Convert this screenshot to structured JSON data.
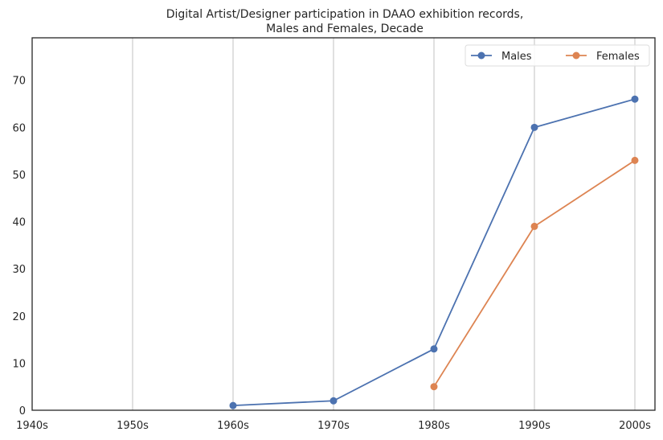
{
  "chart_data": {
    "type": "line",
    "title_lines": [
      "Digital Artist/Designer participation in DAAO exhibition records,",
      "Males and Females, Decade"
    ],
    "categories": [
      "1940s",
      "1950s",
      "1960s",
      "1970s",
      "1980s",
      "1990s",
      "2000s"
    ],
    "series": [
      {
        "name": "Males",
        "color": "#4c72b0",
        "values": [
          null,
          null,
          1,
          2,
          13,
          60,
          66
        ]
      },
      {
        "name": "Females",
        "color": "#dd8452",
        "values": [
          null,
          null,
          null,
          null,
          5,
          39,
          53
        ]
      }
    ],
    "xlabel": "",
    "ylabel": "",
    "ylim": [
      0,
      79
    ],
    "yticks": [
      0,
      10,
      20,
      30,
      40,
      50,
      60,
      70
    ],
    "grid": "vertical",
    "legend": "top-right"
  }
}
